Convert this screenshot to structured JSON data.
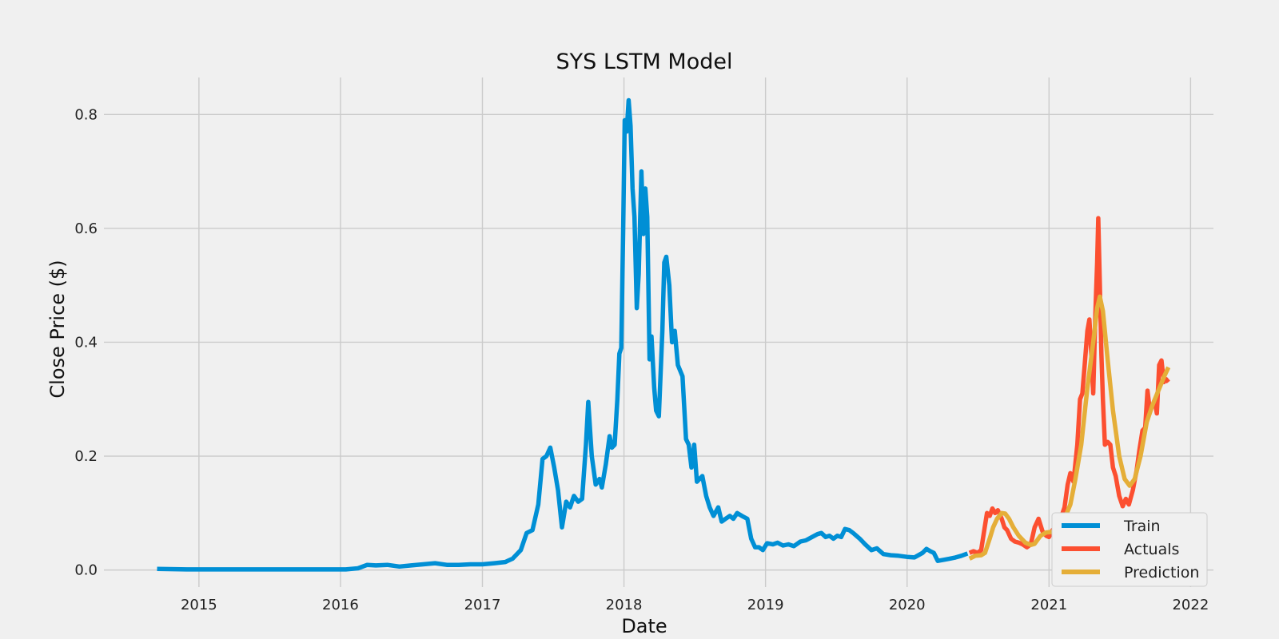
{
  "chart_data": {
    "type": "line",
    "title": "SYS LSTM Model",
    "xlabel": "Date",
    "ylabel": "Close Price ($)",
    "xlim": [
      "2014-05-01",
      "2022-03-01"
    ],
    "ylim": [
      -0.03,
      0.865
    ],
    "x_ticks": [
      "2015",
      "2016",
      "2017",
      "2018",
      "2019",
      "2020",
      "2021",
      "2022"
    ],
    "y_ticks": [
      "0.0",
      "0.2",
      "0.4",
      "0.6",
      "0.8"
    ],
    "grid": true,
    "legend_position": "bottom-right",
    "series": [
      {
        "name": "Train",
        "color": "#008fd5",
        "points": [
          [
            "2014-09-15",
            0.002
          ],
          [
            "2014-12-01",
            0.001
          ],
          [
            "2015-06-01",
            0.001
          ],
          [
            "2016-01-15",
            0.001
          ],
          [
            "2016-02-15",
            0.003
          ],
          [
            "2016-03-10",
            0.009
          ],
          [
            "2016-04-01",
            0.008
          ],
          [
            "2016-05-01",
            0.009
          ],
          [
            "2016-06-01",
            0.006
          ],
          [
            "2016-07-01",
            0.008
          ],
          [
            "2016-08-01",
            0.01
          ],
          [
            "2016-09-01",
            0.012
          ],
          [
            "2016-10-01",
            0.009
          ],
          [
            "2016-11-01",
            0.009
          ],
          [
            "2016-12-01",
            0.01
          ],
          [
            "2017-01-01",
            0.01
          ],
          [
            "2017-02-01",
            0.012
          ],
          [
            "2017-03-01",
            0.014
          ],
          [
            "2017-03-20",
            0.02
          ],
          [
            "2017-04-10",
            0.035
          ],
          [
            "2017-04-25",
            0.065
          ],
          [
            "2017-05-10",
            0.07
          ],
          [
            "2017-05-25",
            0.115
          ],
          [
            "2017-06-05",
            0.195
          ],
          [
            "2017-06-15",
            0.2
          ],
          [
            "2017-06-25",
            0.215
          ],
          [
            "2017-07-05",
            0.18
          ],
          [
            "2017-07-15",
            0.14
          ],
          [
            "2017-07-25",
            0.075
          ],
          [
            "2017-08-05",
            0.12
          ],
          [
            "2017-08-15",
            0.11
          ],
          [
            "2017-08-25",
            0.13
          ],
          [
            "2017-09-05",
            0.12
          ],
          [
            "2017-09-15",
            0.125
          ],
          [
            "2017-09-25",
            0.22
          ],
          [
            "2017-10-01",
            0.295
          ],
          [
            "2017-10-10",
            0.2
          ],
          [
            "2017-10-20",
            0.15
          ],
          [
            "2017-10-30",
            0.16
          ],
          [
            "2017-11-05",
            0.145
          ],
          [
            "2017-11-15",
            0.185
          ],
          [
            "2017-11-25",
            0.235
          ],
          [
            "2017-12-01",
            0.215
          ],
          [
            "2017-12-08",
            0.22
          ],
          [
            "2017-12-15",
            0.3
          ],
          [
            "2017-12-20",
            0.38
          ],
          [
            "2017-12-25",
            0.39
          ],
          [
            "2017-12-30",
            0.6
          ],
          [
            "2018-01-03",
            0.79
          ],
          [
            "2018-01-08",
            0.77
          ],
          [
            "2018-01-13",
            0.825
          ],
          [
            "2018-01-18",
            0.78
          ],
          [
            "2018-01-23",
            0.67
          ],
          [
            "2018-01-28",
            0.62
          ],
          [
            "2018-02-03",
            0.46
          ],
          [
            "2018-02-08",
            0.52
          ],
          [
            "2018-02-15",
            0.7
          ],
          [
            "2018-02-20",
            0.59
          ],
          [
            "2018-02-25",
            0.67
          ],
          [
            "2018-03-02",
            0.62
          ],
          [
            "2018-03-08",
            0.37
          ],
          [
            "2018-03-13",
            0.41
          ],
          [
            "2018-03-20",
            0.32
          ],
          [
            "2018-03-25",
            0.28
          ],
          [
            "2018-04-01",
            0.27
          ],
          [
            "2018-04-10",
            0.42
          ],
          [
            "2018-04-15",
            0.54
          ],
          [
            "2018-04-20",
            0.55
          ],
          [
            "2018-04-28",
            0.5
          ],
          [
            "2018-05-05",
            0.4
          ],
          [
            "2018-05-12",
            0.42
          ],
          [
            "2018-05-20",
            0.36
          ],
          [
            "2018-06-01",
            0.34
          ],
          [
            "2018-06-10",
            0.23
          ],
          [
            "2018-06-17",
            0.22
          ],
          [
            "2018-06-24",
            0.18
          ],
          [
            "2018-07-01",
            0.22
          ],
          [
            "2018-07-08",
            0.155
          ],
          [
            "2018-07-15",
            0.16
          ],
          [
            "2018-07-22",
            0.165
          ],
          [
            "2018-08-01",
            0.13
          ],
          [
            "2018-08-10",
            0.11
          ],
          [
            "2018-08-20",
            0.095
          ],
          [
            "2018-09-01",
            0.11
          ],
          [
            "2018-09-10",
            0.085
          ],
          [
            "2018-09-20",
            0.09
          ],
          [
            "2018-10-01",
            0.095
          ],
          [
            "2018-10-10",
            0.09
          ],
          [
            "2018-10-20",
            0.1
          ],
          [
            "2018-11-01",
            0.095
          ],
          [
            "2018-11-15",
            0.09
          ],
          [
            "2018-11-25",
            0.055
          ],
          [
            "2018-12-05",
            0.04
          ],
          [
            "2018-12-15",
            0.04
          ],
          [
            "2018-12-25",
            0.035
          ],
          [
            "2019-01-05",
            0.047
          ],
          [
            "2019-01-20",
            0.045
          ],
          [
            "2019-02-01",
            0.048
          ],
          [
            "2019-02-15",
            0.043
          ],
          [
            "2019-03-01",
            0.045
          ],
          [
            "2019-03-15",
            0.042
          ],
          [
            "2019-04-01",
            0.05
          ],
          [
            "2019-04-15",
            0.052
          ],
          [
            "2019-05-01",
            0.058
          ],
          [
            "2019-05-15",
            0.063
          ],
          [
            "2019-05-25",
            0.065
          ],
          [
            "2019-06-05",
            0.058
          ],
          [
            "2019-06-15",
            0.06
          ],
          [
            "2019-06-25",
            0.055
          ],
          [
            "2019-07-05",
            0.06
          ],
          [
            "2019-07-15",
            0.058
          ],
          [
            "2019-07-25",
            0.072
          ],
          [
            "2019-08-05",
            0.07
          ],
          [
            "2019-08-15",
            0.065
          ],
          [
            "2019-09-01",
            0.055
          ],
          [
            "2019-09-15",
            0.045
          ],
          [
            "2019-10-01",
            0.035
          ],
          [
            "2019-10-15",
            0.038
          ],
          [
            "2019-11-01",
            0.028
          ],
          [
            "2019-11-20",
            0.026
          ],
          [
            "2019-12-10",
            0.025
          ],
          [
            "2020-01-01",
            0.023
          ],
          [
            "2020-01-20",
            0.022
          ],
          [
            "2020-02-10",
            0.03
          ],
          [
            "2020-02-20",
            0.037
          ],
          [
            "2020-03-01",
            0.033
          ],
          [
            "2020-03-10",
            0.03
          ],
          [
            "2020-03-20",
            0.016
          ],
          [
            "2020-04-05",
            0.018
          ],
          [
            "2020-04-20",
            0.02
          ],
          [
            "2020-05-05",
            0.022
          ],
          [
            "2020-05-20",
            0.025
          ],
          [
            "2020-06-05",
            0.029
          ]
        ]
      },
      {
        "name": "Actuals",
        "color": "#fc4f30",
        "points": [
          [
            "2020-06-10",
            0.03
          ],
          [
            "2020-06-20",
            0.033
          ],
          [
            "2020-07-01",
            0.03
          ],
          [
            "2020-07-10",
            0.035
          ],
          [
            "2020-07-18",
            0.07
          ],
          [
            "2020-07-25",
            0.1
          ],
          [
            "2020-08-01",
            0.095
          ],
          [
            "2020-08-08",
            0.108
          ],
          [
            "2020-08-15",
            0.1
          ],
          [
            "2020-08-22",
            0.105
          ],
          [
            "2020-09-01",
            0.09
          ],
          [
            "2020-09-08",
            0.075
          ],
          [
            "2020-09-15",
            0.07
          ],
          [
            "2020-09-25",
            0.055
          ],
          [
            "2020-10-05",
            0.05
          ],
          [
            "2020-10-15",
            0.048
          ],
          [
            "2020-10-25",
            0.045
          ],
          [
            "2020-11-05",
            0.04
          ],
          [
            "2020-11-15",
            0.045
          ],
          [
            "2020-11-25",
            0.075
          ],
          [
            "2020-12-05",
            0.09
          ],
          [
            "2020-12-15",
            0.068
          ],
          [
            "2020-12-25",
            0.06
          ],
          [
            "2021-01-01",
            0.058
          ],
          [
            "2021-01-10",
            0.07
          ],
          [
            "2021-01-20",
            0.078
          ],
          [
            "2021-02-01",
            0.092
          ],
          [
            "2021-02-10",
            0.11
          ],
          [
            "2021-02-18",
            0.15
          ],
          [
            "2021-02-25",
            0.17
          ],
          [
            "2021-03-05",
            0.155
          ],
          [
            "2021-03-15",
            0.22
          ],
          [
            "2021-03-22",
            0.3
          ],
          [
            "2021-03-28",
            0.31
          ],
          [
            "2021-04-03",
            0.36
          ],
          [
            "2021-04-10",
            0.42
          ],
          [
            "2021-04-15",
            0.44
          ],
          [
            "2021-04-20",
            0.38
          ],
          [
            "2021-04-25",
            0.31
          ],
          [
            "2021-05-01",
            0.46
          ],
          [
            "2021-05-05",
            0.54
          ],
          [
            "2021-05-08",
            0.618
          ],
          [
            "2021-05-12",
            0.5
          ],
          [
            "2021-05-16",
            0.38
          ],
          [
            "2021-05-20",
            0.3
          ],
          [
            "2021-05-25",
            0.22
          ],
          [
            "2021-06-01",
            0.225
          ],
          [
            "2021-06-08",
            0.22
          ],
          [
            "2021-06-15",
            0.18
          ],
          [
            "2021-06-22",
            0.165
          ],
          [
            "2021-07-01",
            0.13
          ],
          [
            "2021-07-10",
            0.112
          ],
          [
            "2021-07-18",
            0.125
          ],
          [
            "2021-07-26",
            0.115
          ],
          [
            "2021-08-05",
            0.14
          ],
          [
            "2021-08-15",
            0.175
          ],
          [
            "2021-08-22",
            0.21
          ],
          [
            "2021-08-30",
            0.245
          ],
          [
            "2021-09-06",
            0.25
          ],
          [
            "2021-09-12",
            0.315
          ],
          [
            "2021-09-18",
            0.28
          ],
          [
            "2021-09-25",
            0.29
          ],
          [
            "2021-10-01",
            0.295
          ],
          [
            "2021-10-06",
            0.275
          ],
          [
            "2021-10-12",
            0.36
          ],
          [
            "2021-10-18",
            0.368
          ],
          [
            "2021-10-24",
            0.33
          ],
          [
            "2021-10-30",
            0.335
          ],
          [
            "2021-11-05",
            0.33
          ]
        ]
      },
      {
        "name": "Prediction",
        "color": "#e5ae38",
        "points": [
          [
            "2020-06-10",
            0.02
          ],
          [
            "2020-06-25",
            0.025
          ],
          [
            "2020-07-10",
            0.026
          ],
          [
            "2020-07-20",
            0.03
          ],
          [
            "2020-08-01",
            0.055
          ],
          [
            "2020-08-10",
            0.075
          ],
          [
            "2020-08-20",
            0.09
          ],
          [
            "2020-09-01",
            0.1
          ],
          [
            "2020-09-10",
            0.099
          ],
          [
            "2020-09-20",
            0.09
          ],
          [
            "2020-10-01",
            0.075
          ],
          [
            "2020-10-15",
            0.06
          ],
          [
            "2020-11-01",
            0.048
          ],
          [
            "2020-11-15",
            0.044
          ],
          [
            "2020-11-25",
            0.046
          ],
          [
            "2020-12-10",
            0.06
          ],
          [
            "2020-12-25",
            0.066
          ],
          [
            "2021-01-10",
            0.067
          ],
          [
            "2021-01-25",
            0.075
          ],
          [
            "2021-02-10",
            0.09
          ],
          [
            "2021-02-25",
            0.115
          ],
          [
            "2021-03-10",
            0.16
          ],
          [
            "2021-03-25",
            0.22
          ],
          [
            "2021-04-10",
            0.32
          ],
          [
            "2021-04-25",
            0.4
          ],
          [
            "2021-05-05",
            0.46
          ],
          [
            "2021-05-12",
            0.48
          ],
          [
            "2021-05-20",
            0.455
          ],
          [
            "2021-06-01",
            0.37
          ],
          [
            "2021-06-15",
            0.28
          ],
          [
            "2021-07-01",
            0.2
          ],
          [
            "2021-07-15",
            0.16
          ],
          [
            "2021-07-28",
            0.148
          ],
          [
            "2021-08-10",
            0.16
          ],
          [
            "2021-08-25",
            0.2
          ],
          [
            "2021-09-10",
            0.26
          ],
          [
            "2021-09-25",
            0.29
          ],
          [
            "2021-10-10",
            0.315
          ],
          [
            "2021-10-25",
            0.34
          ],
          [
            "2021-11-05",
            0.356
          ]
        ]
      }
    ]
  }
}
